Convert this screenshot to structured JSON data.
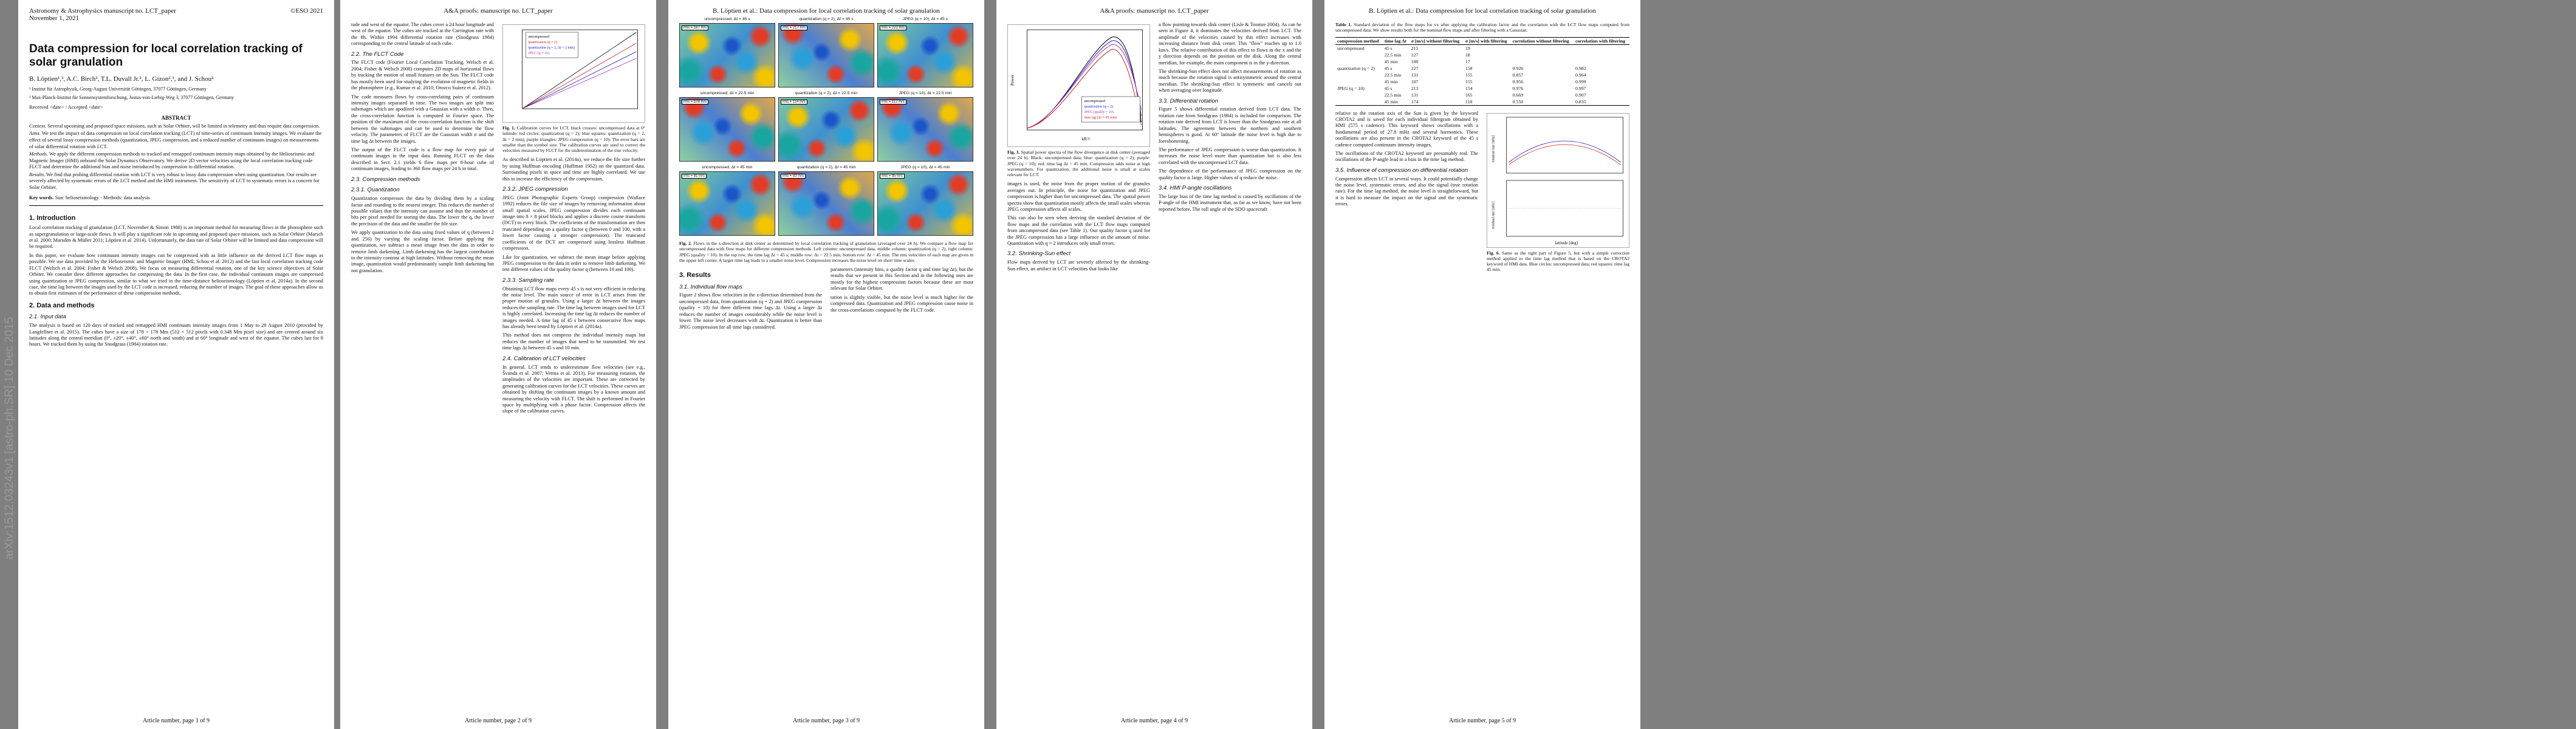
{
  "arxiv_stamp": "arXiv:1512.03243v1  [astro-ph.SR]  10 Dec 2015",
  "p1": {
    "header_left": "Astronomy & Astrophysics manuscript no. LCT_paper",
    "header_date": "November 1, 2021",
    "header_right": "©ESO 2021",
    "title": "Data compression for local correlation tracking of solar granulation",
    "authors": "B. Löptien¹,², A.C. Birch², T.L. Duvall Jr.², L. Gizon²,¹, and J. Schou²",
    "aff1": "¹ Institut für Astrophysik, Georg-August Universität Göttingen, 37077 Göttingen, Germany",
    "aff2": "² Max-Planck-Institut für Sonnensystemforschung, Justus-von-Liebig-Weg 3, 37077 Göttingen, Germany",
    "received": "Received <date> / Accepted <date>",
    "abstract_title": "ABSTRACT",
    "abs_context_k": "Context.",
    "abs_context": "Several upcoming and proposed space missions, such as Solar Orbiter, will be limited in telemetry and thus require data compression.",
    "abs_aims_k": "Aims.",
    "abs_aims": "We test the impact of data compression on local correlation tracking (LCT) of time-series of continuum intensity images. We evaluate the effect of several lossy compression methods (quantization, JPEG compression, and a reduced number of continuum images) on measurements of solar differential rotation with LCT.",
    "abs_methods_k": "Methods.",
    "abs_methods": "We apply the different compression methods to tracked and remapped continuum intensity maps obtained by the Helioseismic and Magnetic Imager (HMI) onboard the Solar Dynamics Observatory. We derive 2D vector velocities using the local correlation tracking code FLCT and determine the additional bias and noise introduced by compression to differential rotation.",
    "abs_results_k": "Results.",
    "abs_results": "We find that probing differential rotation with LCT is very robust to lossy data compression when using quantization. Our results are severely affected by systematic errors of the LCT method and the HMI instrument. The sensitivity of LCT to systematic errors is a concern for Solar Orbiter.",
    "kw_k": "Key words.",
    "kw": "Sun: helioseismology - Methods: data analysis",
    "s1": "1. Introduction",
    "intro1": "Local correlation tracking of granulation (LCT, November & Simon 1988) is an important method for measuring flows in the photosphere such as supergranulation or large-scale flows. It will play a significant role in upcoming and proposed space missions, such as Solar Orbiter (Marsch et al. 2000; Marsden & Müller 2011; Löptien et al. 2014). Unfortunately, the data rate of Solar Orbiter will be limited and data compression will be required.",
    "intro2": "In this paper, we evaluate how continuum intensity images can be compressed with as little influence on the derived LCT flow maps as possible. We use data provided by the Helioseismic and Magnetic Imager (HMI, Schou et al. 2012) and the fast local correlation tracking code FLCT (Welsch et al. 2004; Fisher & Welsch 2008). We focus on measuring differential rotation, one of the key science objectives of Solar Orbiter. We consider three different approaches for compressing the data. In the first case, the individual continuum images are compressed using quantization or JPEG compression, similar to what we tried in the time-distance helioseismology (Löptien et al. 2014a). In the second case, the time lag between the images used by the LCT code is increased, reducing the number of images. The goal of these approaches allow us to obtain first estimates of the performance of these compression methods.",
    "s2": "2. Data and methods",
    "s21": "2.1. Input data",
    "data1": "The analysis is based on 120 days of tracked and remapped HMI continuum intensity images from 1 May to 28 August 2010 (provided by Langfellner et al. 2015). The cubes have a size of 178 × 178 Mm (512 × 512 pixels with 0.348 Mm pixel size) and are centred around six latitudes along the central meridian (0°, ±20°, ±40°, ±60° north and south) and at 60° longitude and west of the equator. The cubes last for 8 hours. We tracked them by using the Snodgrass (1984) rotation rate."
  },
  "p2": {
    "header": "A&A proofs: manuscript no. LCT_paper",
    "col1_cont": "tude and west of the equator. The cubes cover a 24 hour longitude and west of the equator. The cubes are tracked at the Carrington rate with the 8h. Within 1994 differential rotation rate (Snodgrass 1984) corresponding to the central latitude of each cube.",
    "s22": "2.2. The FLCT Code",
    "flct1": "The FLCT code (Fourier Local Correlation Tracking, Welsch et al. 2004; Fisher & Welsch 2008) computes 2D maps of horizontal flows by tracking the motion of small features on the Sun. The FLCT code has mostly been used for studying the evolution of magnetic fields in the photosphere (e.g., Kumar et al. 2010; Orozco Suárez et al. 2012).",
    "flct2": "The code measures flows by cross-correlating pairs of continuum intensity images separated in time. The two images are split into subimages which are apodized with a Gaussian with a width σ. Then, the cross-correlation function is computed in Fourier space. The position of the maximum of the cross-correlation function is the shift between the subimages and can be used to determine the flow velocity. The parameters of FLCT are the Gaussian width σ and the time lag Δt between the images.",
    "flct3": "The output of the FLCT code is a flow map for every pair of continuum images in the input data. Running FLCT on the data described in Sect. 2.1 yields 6 flow maps per 8-hour cube of continuum images, leading to 360 flow maps per 24 h in total.",
    "s23": "2.3. Compression methods",
    "s231": "2.3.1. Quantization",
    "quant1": "Quantization compresses the data by dividing them by a scaling factor and rounding to the nearest integer. This reduces the number of possible values that the intensity can assume and thus the number of bits per pixel needed for storing the data. The lower the q, the lower the precision of the data and the smaller the file size.",
    "quant2": "We apply quantization to the data using fixed values of q (between 2 and 256) by varying the scaling factor. Before applying the quantization, we subtract a mean image from the data in order to remove limb darkening. Limb darkening has the largest contribution to the intensity contrast at high latitudes. Without removing the mean image, quantization would predominantly sample limb darkening but not granulation.",
    "quant3": "As described in Löptien et al. (2014a), we reduce the file size further by using Huffman encoding (Huffman 1952) on the quantized data. Surrounding pixels in space and time are highly correlated. We use this to increase the efficiency of the compression.",
    "s232": "2.3.2. JPEG compression",
    "jpeg1": "JPEG (Joint Photographic Experts Group) compression (Wallace 1992) reduces the file size of images by removing information about small spatial scales. JPEG compression divides each continuum image into 8 × 8 pixel blocks and applies a discrete cosine transform (DCT) to every block. The coefficients of the transformation are then truncated depending on a quality factor q (between 0 and 100, with a lower factor causing a stronger compression). The truncated coefficients of the DCT are compressed using lossless Huffman compression.",
    "jpeg2": "Like for quantization, we subtract the mean image before applying JPEG compression to the data in order to remove limb darkening. We test different values of the quality factor q (between 10 and 100).",
    "s233": "2.3.3. Sampling rate",
    "samp1": "Obtaining LCT flow maps every 45 s is not very efficient in reducing the noise level. The main source of error in LCT arises from the proper motion of granules. Using a larger Δt between the images reduces the sampling rate. The time lag between images used for LCT is highly correlated. Increasing the time lag Δt reduces the number of images needed. A time lag of 45 s between consecutive flow maps has already been tested by Löptien et al. (2014a).",
    "samp2": "This method does not compress the individual intensity maps but reduces the number of images that need to be transmitted. We test time lags Δt between 45 s and 10 min.",
    "fig1_cap_label": "Fig. 1.",
    "fig1_cap": "Calibration curves for LCT, black crosses: uncompressed data at 0° latitude; red circles: quantization (q = 2); blue squares: quantization (q = 2, Δt = 2 min); purple triangles: JPEG compression (q = 10). The error bars are smaller than the symbol size. The calibration curves are used to correct the velocities measured by FLCT for the underestimation of the true velocity.",
    "s24": "2.4. Calibration of LCT velocities",
    "cal1": "In general, LCT tends to underestimate flow velocities (see e.g., Švanda et al. 2007; Verma et al. 2013). For measuring rotation, the amplitudes of the velocities are important. These are corrected by generating calibration curves for the LCT velocities. These curves are obtained by shifting the continuum images by a known amount and measuring the velocity with FLCT. The shift is performed in Fourier space by multiplying with a phase factor. Compression affects the slope of the calibration curves.",
    "legend1": "uncompressed",
    "legend2": "quantization (q = 2)",
    "legend3": "quantization (q = 2, Δt = 2 min)",
    "legend4": "JPEG (q = 10)",
    "footer": "Article number, page 2 of 9"
  },
  "p3": {
    "header": "B. Löptien et al.: Data compression for local correlation tracking of solar granulation",
    "tiles": [
      {
        "label": "uncompressed, Δt = 45 s",
        "rms": "rms = 167 m/s"
      },
      {
        "label": "quantization (q = 2), Δt = 45 s",
        "rms": "rms = 217 m/s"
      },
      {
        "label": "JPEG (q = 10), Δt = 45 s",
        "rms": "rms = 222 m/s"
      },
      {
        "label": "uncompressed, Δt = 22.5 min",
        "rms": "rms = 108 m/s"
      },
      {
        "label": "quantization (q = 2), Δt = 22.5 min",
        "rms": "rms = 114 m/s"
      },
      {
        "label": "JPEG (q = 10), Δt = 22.5 min",
        "rms": "rms = 112 m/s"
      },
      {
        "label": "uncompressed, Δt = 45 min",
        "rms": "rms = 81 m/s"
      },
      {
        "label": "quantization (q = 2), Δt = 45 min",
        "rms": "rms = 83 m/s"
      },
      {
        "label": "JPEG (q = 10), Δt = 45 min",
        "rms": "rms = 85 m/s"
      }
    ],
    "fig2_cap_label": "Fig. 2.",
    "fig2_cap": "Flows in the x-direction at disk center as determined by local correlation tracking of granulation (averaged over 24 h). We compare a flow map for uncompressed data with flow maps for different compression methods. Left column: uncompressed data, middle column: quantization (q = 2), right column: JPEG (quality = 10). In the top row, the time lag Δt = 45 s; middle row: Δt = 22.5 min; bottom row: Δt = 45 min. The rms velocities of each map are given in the upper left corner. A larger time lag leads to a smaller noise level. Compression increases the noise level on short time scales.",
    "s3": "3. Results",
    "s31": "3.1. Individual flow maps",
    "res1": "Figure 2 shows flow velocities in the x-direction determined from the uncompressed data, from quantization (q = 2) and JPEG compression (quality = 10) for three different time lags Δt. Using a larger Δt reduces the number of images considerably while the noise level is lower. The noise level decreases with Δt. Quantization is better than JPEG compression for all time lags considered.",
    "res2": "parameters (intensity bins, a quality factor q and time lag Δt), but the results that we present in this Section and in the following ones are mostly for the highest compression factors because these are most relevant for Solar Orbiter.",
    "res3": "tation is slightly visible, but the noise level is much higher for the compressed data. Quantization and JPEG compression cause noise in the cross-correlations computed by the FLCT code.",
    "footer": "Article number, page 3 of 9"
  },
  "p4": {
    "header": "A&A proofs: manuscript no. LCT_paper",
    "fig3_cap_label": "Fig. 3.",
    "fig3_cap": "Spatial power spectra of the flow divergence at disk center (averaged over 24 h). Black: uncompressed data; blue: quantization (q = 2); purple: JPEG (q = 10); red: time lag Δt = 45 min. Compression adds noise at high wavenumbers. For quantization, the additional noise is small at scales relevant for LCT.",
    "legend": [
      "uncompressed",
      "quantization (q = 2)",
      "JPEG (quality = 10)",
      "time lag (Δt = 45 min)"
    ],
    "xlabel": "kR☉",
    "ylabel": "Power",
    "col1a": "images is used, the noise from the proper motion of the granules averages out. In principle, the noise for quantization and JPEG compression is higher than for uncompressed data. The spatial power spectra show that quantization mostly affects the small scales whereas JPEG compression affects all scales.",
    "col1b": "This can also be seen when deriving the standard deviation of the flow maps and the correlation with the LCT flow maps computed from uncompressed data (see Table 1). Our quality factor q used for the JPEG compression has a large influence on the amount of noise. Quantization with q = 2 introduces only small errors.",
    "s32": "3.2. Shrinking-Sun effect",
    "shrink1": "Flow maps derived by LCT are severely affected by the shrinking-Sun effect, an artifact in LCT velocities that looks like",
    "col2a": "a flow pointing towards disk center (Lisle & Toomre 2004). As can be seen in Figure 4, it dominates the velocities derived from LCT. The amplitude of the velocities caused by this effect increases with increasing distance from disk center. This \"flow\" reaches up to 1.0 km/s. The relative contribution of this effect to flows in the x and the y direction depends on the position on the disk. Along the central meridian, for example, the main component is in the y-direction.",
    "col2b": "The shrinking-Sun effect does not affect measurements of rotation as much because the rotation signal is antisymmetric around the central meridian. The shrinking-Sun effect is symmetric and cancels out when averaging over longitude.",
    "s33": "3.3. Differential rotation",
    "diff1": "Figure 5 shows differential rotation derived from LCT data. The rotation rate from Snodgrass (1984) is included for comparison. The rotation rate derived from LCT is lower than the Snodgrass rate at all latitudes. The agreement between the northern and southern hemispheres is good. At 60° latitude the noise level is high due to foreshortening.",
    "diff2": "The performance of JPEG compression is worse than quantization. It increases the noise level more than quantization but is also less correlated with the uncompressed LCT data.",
    "diff3": "The dependence of the performance of JPEG compression on the quality factor is large. Higher values of q reduce the noise.",
    "s34": "3.4. HMI P-angle oscillations",
    "pang1": "The large bias of the time lag method is caused by oscillations of the P-angle of the HMI instrument that, as far as we know, have not been reported before. The roll angle of the SDO spacecraft",
    "footer": "Article number, page 4 of 9"
  },
  "p5": {
    "header": "B. Löptien et al.: Data compression for local correlation tracking of solar granulation",
    "tab_cap_label": "Table 1.",
    "tab_cap": "Standard deviation of the flow maps for vx after applying the calibration factor and the correlation with the LCT flow maps computed from uncompressed data. We show results both for the nominal flow maps and after filtering with a Gaussian.",
    "th": [
      "compression method",
      "time lag Δt",
      "σ [m/s] without filtering",
      "σ [m/s] with filtering",
      "correlation without filtering",
      "correlation with filtering"
    ],
    "rows": [
      [
        "uncompressed",
        "45 s",
        "215",
        "19",
        "",
        ""
      ],
      [
        "",
        "22.5 min",
        "127",
        "18",
        "",
        ""
      ],
      [
        "",
        "45 min",
        "100",
        "17",
        "",
        ""
      ],
      [
        "quantization (q = 2)",
        "45 s",
        "227",
        "158",
        "0.926",
        "0.983"
      ],
      [
        "",
        "22.5 min",
        "131",
        "155",
        "0.857",
        "0.964"
      ],
      [
        "",
        "45 min",
        "107",
        "155",
        "0.956",
        "0.999"
      ],
      [
        "JPEG (q = 10)",
        "45 s",
        "213",
        "154",
        "0.976",
        "0.997"
      ],
      [
        "",
        "22.5 min",
        "131",
        "165",
        "0.669",
        "0.907"
      ],
      [
        "",
        "45 min",
        "174",
        "118",
        "0.550",
        "0.835"
      ]
    ],
    "col1a": "relative to the rotation axis of the Sun is given by the keyword CROTA2 and is saved for each individual filtergram obtained by HMI (575 s cadence). This keyword shows oscillations with a fundamental period of 27.8 mHz and several harmonics. These oscillations are also present in the CROTA2 keyword of the 45 s cadence computed continuum intensity images.",
    "col1b": "The oscillations of the CROTA2 keyword are presumably real. The oscillations of the P-angle lead to a bias in the time lag method.",
    "s35": "3.5. Influence of compression on differential rotation",
    "infl1": "Compression affects LCT in several ways. It could potentially change the noise level, systematic errors, and also the signal (true rotation rate). For the time lag method, the noise level is straightforward, but it is hard to measure the impact on the signal and the systematic errors.",
    "fig6_cap_label": "Fig. 6.",
    "fig6_cap": "Same as the right part of Figure 5, but with a simple correction method applied to the time lag method that is based on the CROTA2 keyword of HMI data. Blue circles: uncompressed data; red squares: time lag 45 min.",
    "ylab_top": "rotation rate [nHz]",
    "ylab_bot": "residual rate [nHz]",
    "xlab": "latitude [deg]",
    "footer": "Article number, page 5 of 9"
  }
}
